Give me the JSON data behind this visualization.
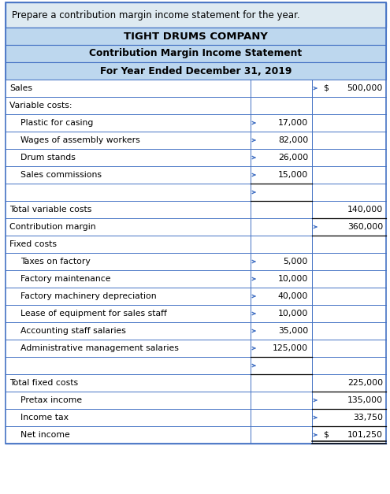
{
  "title_prompt": "Prepare a contribution margin income statement for the year.",
  "company": "TIGHT DRUMS COMPANY",
  "statement_title": "Contribution Margin Income Statement",
  "period": "For Year Ended December 31, 2019",
  "header_bg": "#BDD7EE",
  "prompt_bg": "#DEEAF1",
  "border_color": "#4472C4",
  "rows": [
    {
      "label": "Sales",
      "indent": 0,
      "col1": "",
      "col2": "500,000",
      "dollar2": true,
      "arrow1": false,
      "arrow2": true
    },
    {
      "label": "Variable costs:",
      "indent": 0,
      "col1": "",
      "col2": "",
      "dollar2": false,
      "arrow1": false,
      "arrow2": false
    },
    {
      "label": "Plastic for casing",
      "indent": 1,
      "col1": "17,000",
      "col2": "",
      "dollar2": false,
      "arrow1": true,
      "arrow2": false
    },
    {
      "label": "Wages of assembly workers",
      "indent": 1,
      "col1": "82,000",
      "col2": "",
      "dollar2": false,
      "arrow1": true,
      "arrow2": false
    },
    {
      "label": "Drum stands",
      "indent": 1,
      "col1": "26,000",
      "col2": "",
      "dollar2": false,
      "arrow1": true,
      "arrow2": false
    },
    {
      "label": "Sales commissions",
      "indent": 1,
      "col1": "15,000",
      "col2": "",
      "dollar2": false,
      "arrow1": true,
      "arrow2": false
    },
    {
      "label": "",
      "indent": 0,
      "col1": "",
      "col2": "",
      "dollar2": false,
      "arrow1": true,
      "arrow2": false
    },
    {
      "label": "Total variable costs",
      "indent": 0,
      "col1": "",
      "col2": "140,000",
      "dollar2": false,
      "arrow1": false,
      "arrow2": false
    },
    {
      "label": "Contribution margin",
      "indent": 0,
      "col1": "",
      "col2": "360,000",
      "dollar2": false,
      "arrow1": false,
      "arrow2": true
    },
    {
      "label": "Fixed costs",
      "indent": 0,
      "col1": "",
      "col2": "",
      "dollar2": false,
      "arrow1": false,
      "arrow2": false
    },
    {
      "label": "Taxes on factory",
      "indent": 1,
      "col1": "5,000",
      "col2": "",
      "dollar2": false,
      "arrow1": true,
      "arrow2": false
    },
    {
      "label": "Factory maintenance",
      "indent": 1,
      "col1": "10,000",
      "col2": "",
      "dollar2": false,
      "arrow1": true,
      "arrow2": false
    },
    {
      "label": "Factory machinery depreciation",
      "indent": 1,
      "col1": "40,000",
      "col2": "",
      "dollar2": false,
      "arrow1": true,
      "arrow2": false
    },
    {
      "label": "Lease of equipment for sales staff",
      "indent": 1,
      "col1": "10,000",
      "col2": "",
      "dollar2": false,
      "arrow1": true,
      "arrow2": false
    },
    {
      "label": "Accounting staff salaries",
      "indent": 1,
      "col1": "35,000",
      "col2": "",
      "dollar2": false,
      "arrow1": true,
      "arrow2": false
    },
    {
      "label": "Administrative management salaries",
      "indent": 1,
      "col1": "125,000",
      "col2": "",
      "dollar2": false,
      "arrow1": true,
      "arrow2": false
    },
    {
      "label": "",
      "indent": 0,
      "col1": "",
      "col2": "",
      "dollar2": false,
      "arrow1": true,
      "arrow2": false
    },
    {
      "label": "Total fixed costs",
      "indent": 0,
      "col1": "",
      "col2": "225,000",
      "dollar2": false,
      "arrow1": false,
      "arrow2": false
    },
    {
      "label": "Pretax income",
      "indent": 1,
      "col1": "",
      "col2": "135,000",
      "dollar2": false,
      "arrow1": false,
      "arrow2": true
    },
    {
      "label": "Income tax",
      "indent": 1,
      "col1": "",
      "col2": "33,750",
      "dollar2": false,
      "arrow1": false,
      "arrow2": true
    },
    {
      "label": "Net income",
      "indent": 1,
      "col1": "",
      "col2": "101,250",
      "dollar2": true,
      "arrow1": false,
      "arrow2": true
    }
  ],
  "underline_col1_rows": [
    5,
    6
  ],
  "underline_col2_rows": [
    7,
    8,
    17,
    18,
    19
  ],
  "double_underline_row": 20,
  "underline_fixed_col1_rows": [
    15,
    16
  ]
}
